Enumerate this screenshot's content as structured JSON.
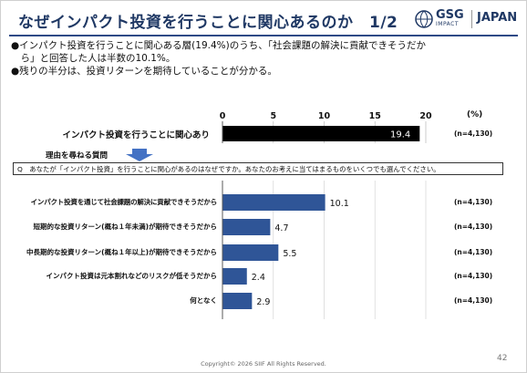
{
  "header": {
    "title": "なぜインパクト投資を行うことに関心あるのか　1/2",
    "logo_main": "GSG",
    "logo_sub": "IMPACT",
    "logo_right": "JAPAN"
  },
  "bullets": [
    "●インパクト投資を行うことに関心ある層(19.4%)のうち、「社会課題の解決に貢献できそうだか",
    "　ら」と回答した人は半数の10.1%。",
    "●残りの半分は、投資リターンを期待していることが分かる。"
  ],
  "reason_title": "理由を尋ねる質問",
  "question": "Q　あなたが「インパクト投資」を行うことに関心があるのはなぜですか。あなたのお考えに当てはまるものをいくつでも選んでください。",
  "footer": "Copyright© 2026 SIIF All Rights Reserved.",
  "page_number": "42",
  "chart_data": {
    "type": "bar",
    "orientation": "horizontal",
    "unit": "(%)",
    "xlim": [
      0,
      20
    ],
    "ticks": [
      "0",
      "5",
      "10",
      "15",
      "20"
    ],
    "top_bar": {
      "label": "インパクト投資を行うことに関心あり",
      "value": 19.4,
      "value_label": "19.4",
      "n": "(n=4,130)",
      "color": "#000000"
    },
    "categories": [
      "インパクト投資を通じて社会課題の解決に貢献できそうだから",
      "短期的な投資リターン(概ね１年未満)が期待できそうだから",
      "中長期的な投資リターン(概ね１年以上)が期待できそうだから",
      "インパクト投資は元本割れなどのリスクが低そうだから",
      "何となく"
    ],
    "values": [
      10.1,
      4.7,
      5.5,
      2.4,
      2.9
    ],
    "value_labels": [
      "10.1",
      "4.7",
      "5.5",
      "2.4",
      "2.9"
    ],
    "n_labels": [
      "(n=4,130)",
      "(n=4,130)",
      "(n=4,130)",
      "(n=4,130)",
      "(n=4,130)"
    ],
    "bar_color": "#2f5597",
    "grid": true
  }
}
